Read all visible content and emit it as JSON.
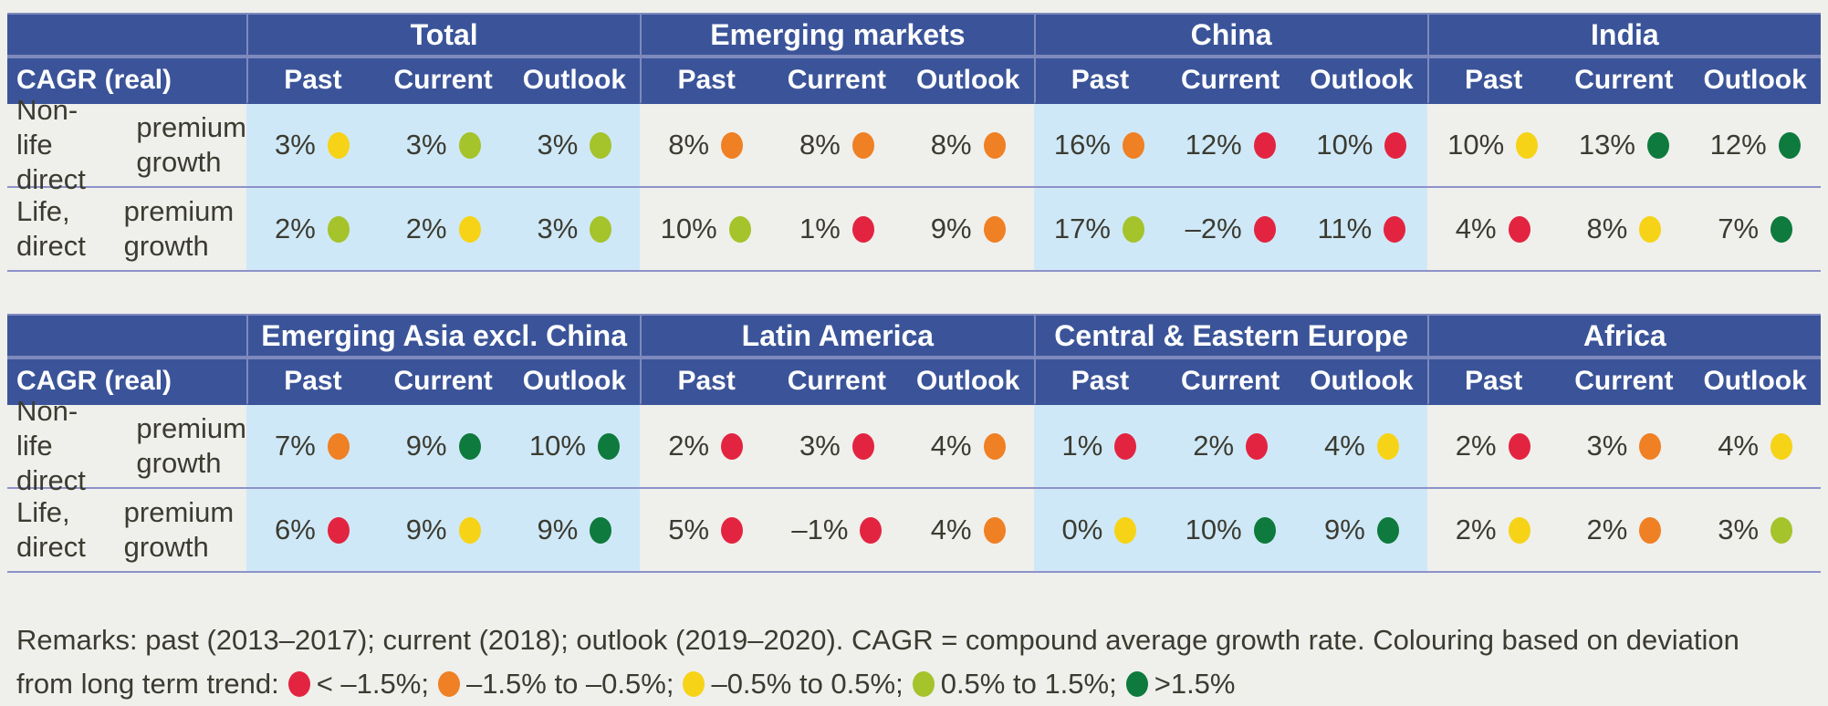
{
  "colors": {
    "header_bg": "#3b5499",
    "header_divider": "#7e89bd",
    "highlight_bg": "#cfe8f7",
    "page_bg": "#efefec",
    "row_line": "#8d92c9",
    "text": "#3b3b31",
    "dots": {
      "red": "#e32440",
      "orange": "#ef8023",
      "yellow": "#f6d316",
      "light_green": "#a5c32a",
      "dark_green": "#0e7a3d"
    }
  },
  "chart_data": {
    "type": "table",
    "tables": [
      {
        "corner_label": "CAGR (real)",
        "sub_headers": [
          "Past",
          "Current",
          "Outlook"
        ],
        "groups": [
          {
            "label": "Total",
            "highlight": true
          },
          {
            "label": "Emerging markets",
            "highlight": false
          },
          {
            "label": "China",
            "highlight": true
          },
          {
            "label": "India",
            "highlight": false
          }
        ],
        "rows": [
          {
            "label_line1": "Non-life direct",
            "label_line2": "premium growth",
            "cells": [
              {
                "value": "3%",
                "dot": "yellow"
              },
              {
                "value": "3%",
                "dot": "light_green"
              },
              {
                "value": "3%",
                "dot": "light_green"
              },
              {
                "value": "8%",
                "dot": "orange"
              },
              {
                "value": "8%",
                "dot": "orange"
              },
              {
                "value": "8%",
                "dot": "orange"
              },
              {
                "value": "16%",
                "dot": "orange"
              },
              {
                "value": "12%",
                "dot": "red"
              },
              {
                "value": "10%",
                "dot": "red"
              },
              {
                "value": "10%",
                "dot": "yellow"
              },
              {
                "value": "13%",
                "dot": "dark_green"
              },
              {
                "value": "12%",
                "dot": "dark_green"
              }
            ]
          },
          {
            "label_line1": "Life, direct",
            "label_line2": "premium growth",
            "cells": [
              {
                "value": "2%",
                "dot": "light_green"
              },
              {
                "value": "2%",
                "dot": "yellow"
              },
              {
                "value": "3%",
                "dot": "light_green"
              },
              {
                "value": "10%",
                "dot": "light_green"
              },
              {
                "value": "1%",
                "dot": "red"
              },
              {
                "value": "9%",
                "dot": "orange"
              },
              {
                "value": "17%",
                "dot": "light_green"
              },
              {
                "value": "–2%",
                "dot": "red"
              },
              {
                "value": "11%",
                "dot": "red"
              },
              {
                "value": "4%",
                "dot": "red"
              },
              {
                "value": "8%",
                "dot": "yellow"
              },
              {
                "value": "7%",
                "dot": "dark_green"
              }
            ]
          }
        ]
      },
      {
        "corner_label": "CAGR (real)",
        "sub_headers": [
          "Past",
          "Current",
          "Outlook"
        ],
        "groups": [
          {
            "label": "Emerging Asia excl. China",
            "highlight": true
          },
          {
            "label": "Latin America",
            "highlight": false
          },
          {
            "label": "Central & Eastern Europe",
            "highlight": true
          },
          {
            "label": "Africa",
            "highlight": false
          }
        ],
        "rows": [
          {
            "label_line1": "Non-life direct",
            "label_line2": "premium growth",
            "cells": [
              {
                "value": "7%",
                "dot": "orange"
              },
              {
                "value": "9%",
                "dot": "dark_green"
              },
              {
                "value": "10%",
                "dot": "dark_green"
              },
              {
                "value": "2%",
                "dot": "red"
              },
              {
                "value": "3%",
                "dot": "red"
              },
              {
                "value": "4%",
                "dot": "orange"
              },
              {
                "value": "1%",
                "dot": "red"
              },
              {
                "value": "2%",
                "dot": "red"
              },
              {
                "value": "4%",
                "dot": "yellow"
              },
              {
                "value": "2%",
                "dot": "red"
              },
              {
                "value": "3%",
                "dot": "orange"
              },
              {
                "value": "4%",
                "dot": "yellow"
              }
            ]
          },
          {
            "label_line1": "Life, direct",
            "label_line2": "premium growth",
            "cells": [
              {
                "value": "6%",
                "dot": "red"
              },
              {
                "value": "9%",
                "dot": "yellow"
              },
              {
                "value": "9%",
                "dot": "dark_green"
              },
              {
                "value": "5%",
                "dot": "red"
              },
              {
                "value": "–1%",
                "dot": "red"
              },
              {
                "value": "4%",
                "dot": "orange"
              },
              {
                "value": "0%",
                "dot": "yellow"
              },
              {
                "value": "10%",
                "dot": "dark_green"
              },
              {
                "value": "9%",
                "dot": "dark_green"
              },
              {
                "value": "2%",
                "dot": "yellow"
              },
              {
                "value": "2%",
                "dot": "orange"
              },
              {
                "value": "3%",
                "dot": "light_green"
              }
            ]
          }
        ]
      }
    ],
    "remarks": {
      "line1": "Remarks: past (2013–2017); current (2018); outlook (2019–2020). CAGR = compound average growth rate. Colouring based on deviation",
      "line2_prefix": "from long term trend:",
      "legend": [
        {
          "dot": "red",
          "label": "< –1.5%;"
        },
        {
          "dot": "orange",
          "label": "–1.5% to –0.5%;"
        },
        {
          "dot": "yellow",
          "label": "–0.5% to 0.5%;"
        },
        {
          "dot": "light_green",
          "label": "0.5% to 1.5%;"
        },
        {
          "dot": "dark_green",
          "label": ">1.5%"
        }
      ]
    }
  }
}
